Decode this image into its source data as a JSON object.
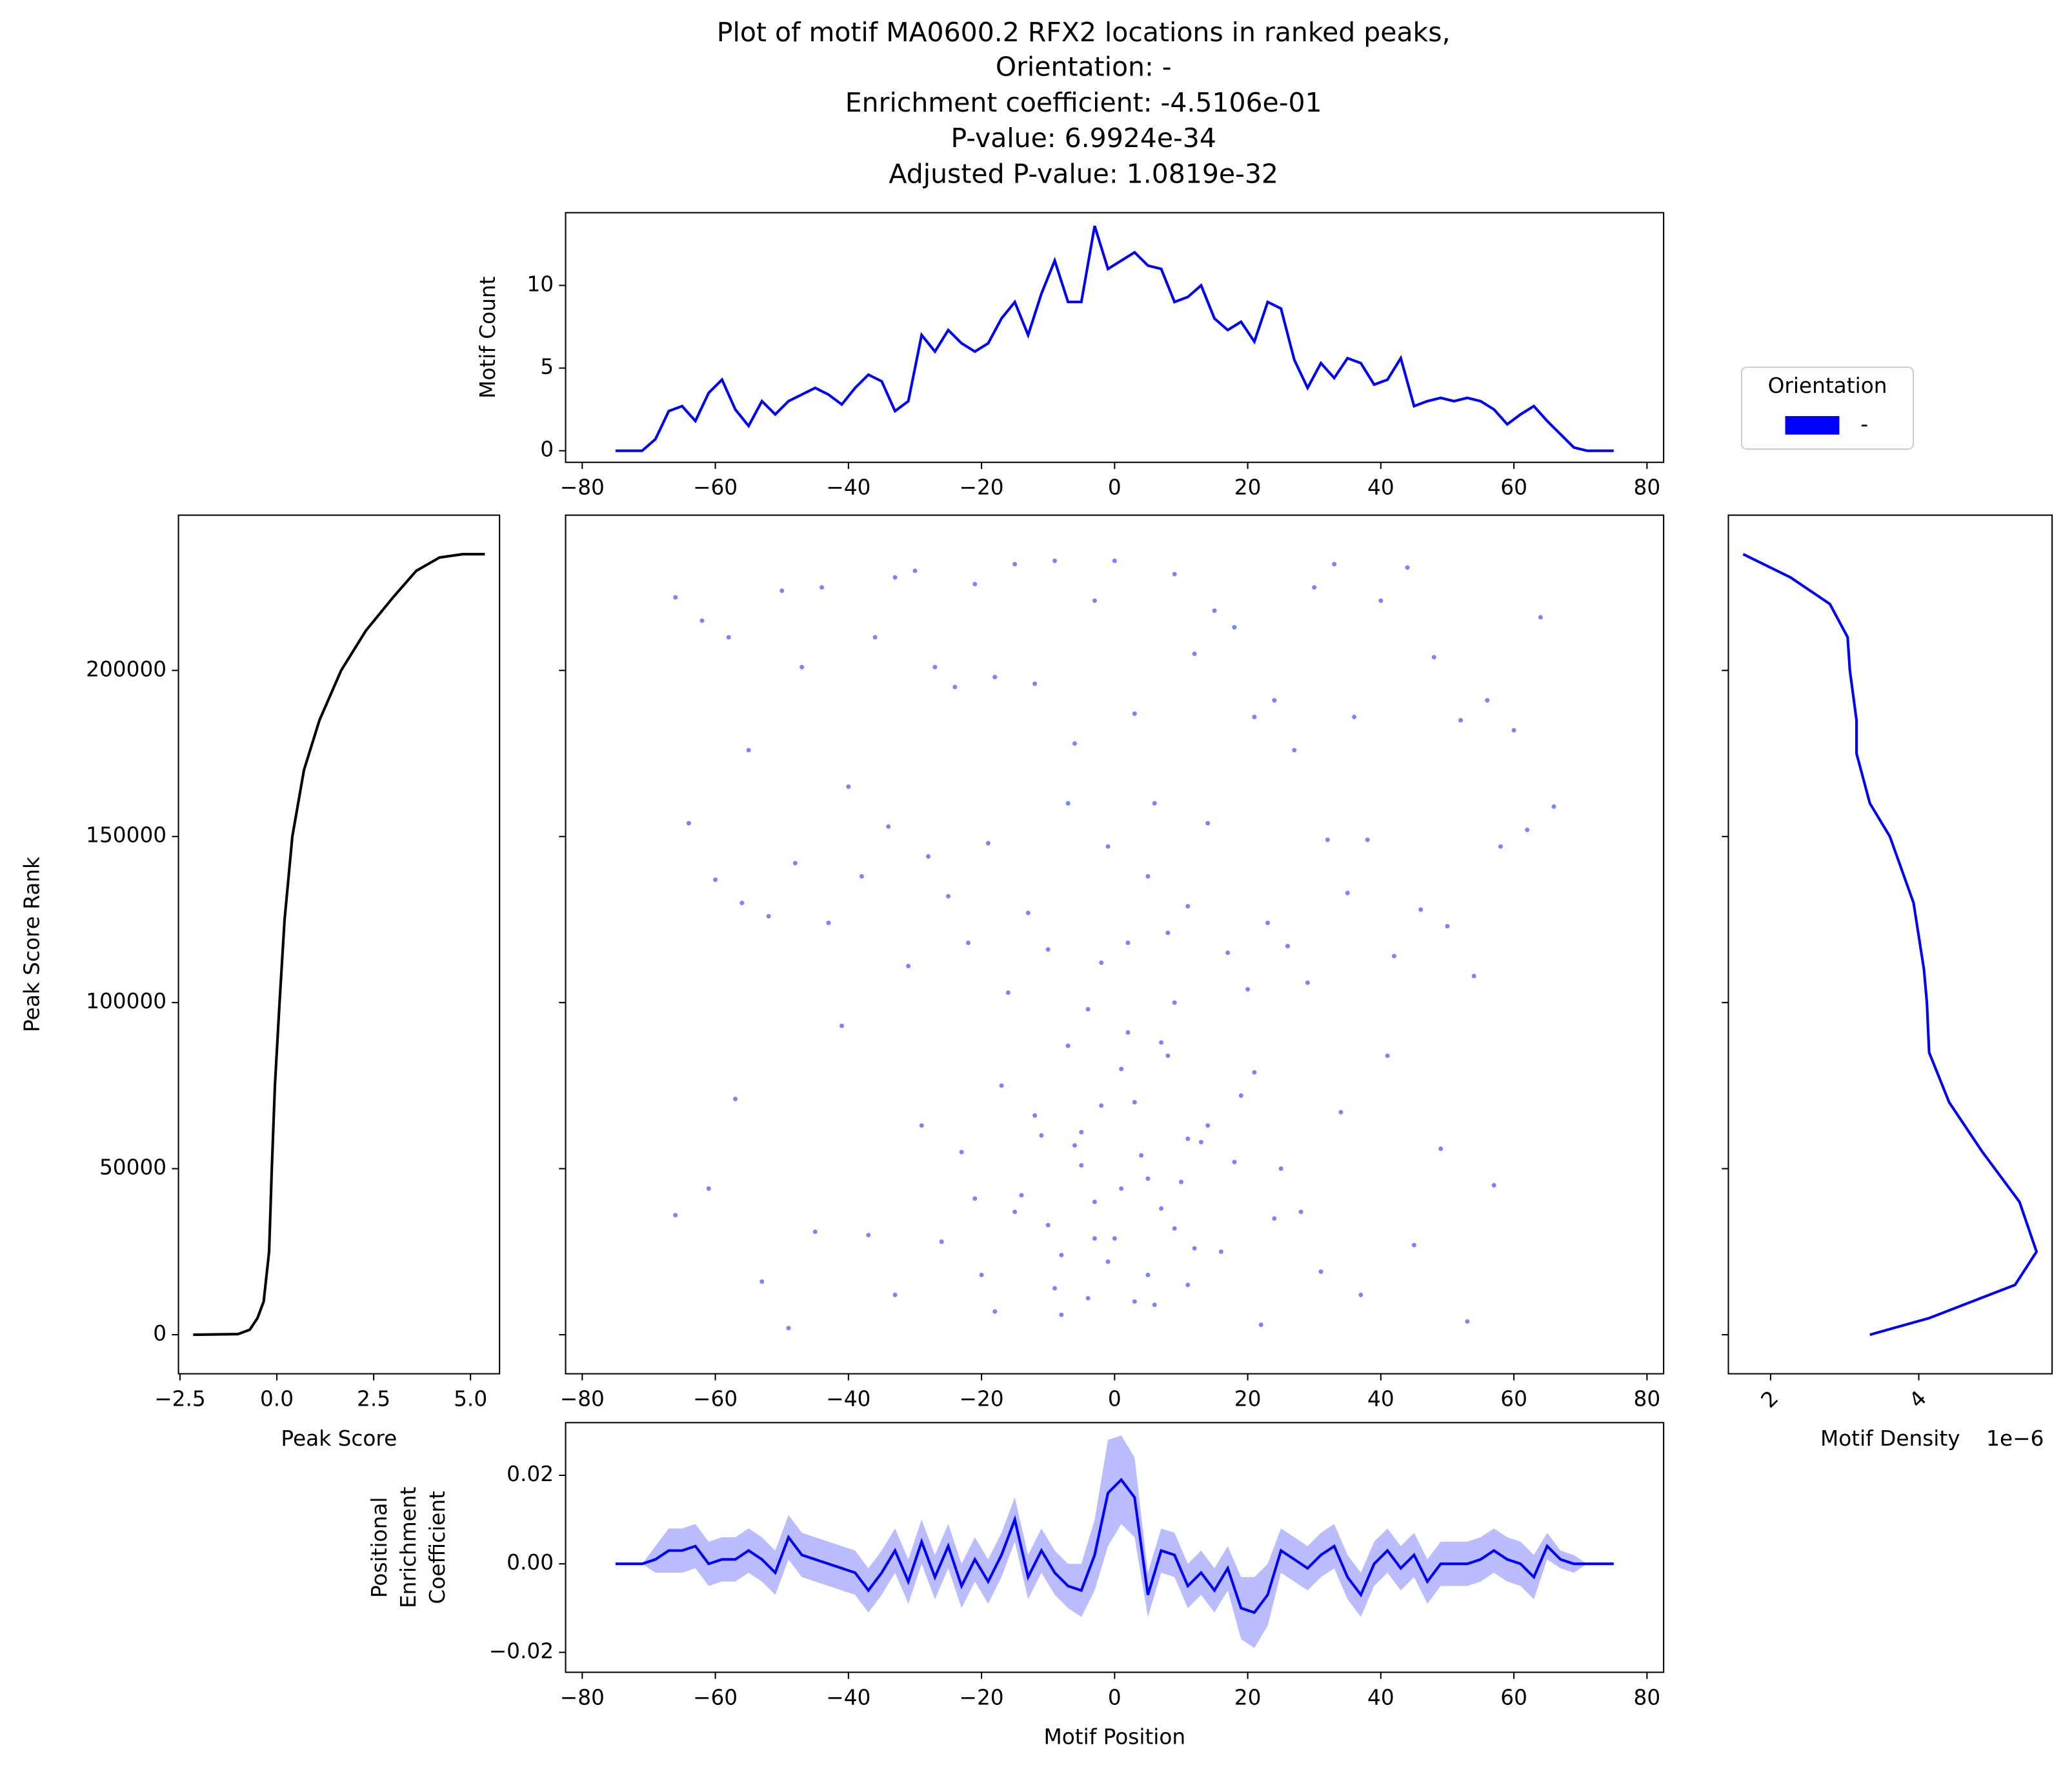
{
  "title": [
    "Plot of motif MA0600.2 RFX2 locations in ranked peaks,",
    "Orientation: -",
    "Enrichment coefficient: -4.5106e-01",
    "P-value: 6.9924e-34",
    "Adjusted P-value: 1.0819e-32"
  ],
  "chart_data": [
    {
      "type": "line",
      "ylabel": [
        "Motif Count"
      ],
      "xlim": [
        -82.5,
        82.5
      ],
      "ylim": [
        -0.7,
        14.4
      ],
      "xticks": [
        {
          "value": -80,
          "label": "−80"
        },
        {
          "value": -60,
          "label": "−60"
        },
        {
          "value": -40,
          "label": "−40"
        },
        {
          "value": -20,
          "label": "−20"
        },
        0,
        20,
        40,
        60,
        80
      ],
      "yticks": [
        0,
        5,
        10
      ],
      "x": [
        -75,
        -73,
        -71,
        -69,
        -67,
        -65,
        -63,
        -61,
        -59,
        -57,
        -55,
        -53,
        -51,
        -49,
        -47,
        -45,
        -43,
        -41,
        -39,
        -37,
        -35,
        -33,
        -31,
        -29,
        -27,
        -25,
        -23,
        -21,
        -19,
        -17,
        -15,
        -13,
        -11,
        -9,
        -7,
        -5,
        -3,
        -1,
        1,
        3,
        5,
        7,
        9,
        11,
        13,
        15,
        17,
        19,
        21,
        23,
        25,
        27,
        29,
        31,
        33,
        35,
        37,
        39,
        41,
        43,
        45,
        47,
        49,
        51,
        53,
        55,
        57,
        59,
        61,
        63,
        65,
        67,
        69,
        71,
        73,
        75
      ],
      "series": [
        {
          "color": "#0000ff",
          "values": [
            0,
            0,
            0,
            0.7,
            2.4,
            2.7,
            1.8,
            3.5,
            4.3,
            2.5,
            1.5,
            3.0,
            2.2,
            3.0,
            3.4,
            3.8,
            3.4,
            2.8,
            3.8,
            4.6,
            4.2,
            2.4,
            3.0,
            7.0,
            6.0,
            7.3,
            6.5,
            6.0,
            6.5,
            8.0,
            9.0,
            7.0,
            9.5,
            11.5,
            9.0,
            9.0,
            13.6,
            11.0,
            11.5,
            12.0,
            11.2,
            11.0,
            9.0,
            9.3,
            10.0,
            8.0,
            7.3,
            7.8,
            6.6,
            9.0,
            8.6,
            5.5,
            3.8,
            5.3,
            4.4,
            5.6,
            5.3,
            4.0,
            4.3,
            5.6,
            2.7,
            3.0,
            3.2,
            3.0,
            3.2,
            3.0,
            2.5,
            1.6,
            2.2,
            2.7,
            1.8,
            1.0,
            0.2,
            0,
            0,
            0
          ]
        }
      ]
    },
    {
      "type": "line",
      "xlabel": "Peak Score",
      "ylabel": [
        "Peak Score Rank"
      ],
      "xlim": [
        -2.54,
        5.75
      ],
      "ylim": [
        -11750,
        246750
      ],
      "xticks": [
        {
          "value": -2.5,
          "label": "−2.5"
        },
        {
          "value": 0,
          "label": "0.0"
        },
        2.5,
        {
          "value": 5,
          "label": "5.0"
        }
      ],
      "yticks": [
        0,
        50000,
        100000,
        150000,
        200000
      ],
      "x": [
        -2.16,
        -1.0,
        -0.7,
        -0.5,
        -0.34,
        -0.2,
        -0.13,
        -0.05,
        0.07,
        0.2,
        0.4,
        0.7,
        1.1,
        1.66,
        2.3,
        3.0,
        3.6,
        4.2,
        4.8,
        5.37
      ],
      "series": [
        {
          "color": "#000000",
          "values": [
            0,
            200,
            1500,
            5000,
            10000,
            25000,
            50000,
            75000,
            100000,
            125000,
            150000,
            170000,
            185000,
            200000,
            212000,
            222000,
            230000,
            234000,
            235000,
            235000
          ]
        }
      ]
    },
    {
      "type": "scatter",
      "legend_title": "Orientation",
      "xlim": [
        -82.5,
        82.5
      ],
      "ylim": [
        -11750,
        246750
      ],
      "xticks": [
        {
          "value": -80,
          "label": "−80"
        },
        {
          "value": -60,
          "label": "−60"
        },
        {
          "value": -40,
          "label": "−40"
        },
        {
          "value": -20,
          "label": "−20"
        },
        0,
        20,
        40,
        60,
        80
      ],
      "yticks": [
        0,
        50000,
        100000,
        150000,
        200000
      ],
      "show_ytick_labels": false,
      "series": [
        {
          "name": "-",
          "color": "#0000ff",
          "x": [
            -66,
            -62,
            -58,
            -55,
            -50,
            -47,
            -44,
            -40,
            -36,
            -33,
            -30,
            -27,
            -24,
            -21,
            -18,
            -15,
            -12,
            -9,
            -6,
            -3,
            0,
            3,
            6,
            9,
            12,
            15,
            18,
            21,
            24,
            27,
            30,
            33,
            36,
            40,
            44,
            48,
            52,
            56,
            60,
            64,
            -64,
            -60,
            -56,
            -52,
            -48,
            -43,
            -38,
            -34,
            -31,
            -28,
            -25,
            -22,
            -19,
            -16,
            -13,
            -10,
            -7,
            -4,
            -1,
            2,
            5,
            8,
            11,
            14,
            17,
            20,
            23,
            26,
            29,
            32,
            35,
            38,
            42,
            46,
            50,
            54,
            58,
            62,
            66,
            -2,
            -66,
            -61,
            -57,
            -53,
            -49,
            -45,
            -41,
            -37,
            -33,
            -29,
            -26,
            -23,
            -20,
            -17,
            -14,
            -11,
            -8,
            -5,
            -3,
            -1,
            1,
            3,
            5,
            7,
            9,
            11,
            13,
            16,
            19,
            22,
            25,
            28,
            31,
            34,
            37,
            41,
            45,
            49,
            53,
            57,
            -12,
            -10,
            -8,
            -6,
            -4,
            -2,
            0,
            2,
            4,
            6,
            8,
            10,
            12,
            14,
            -15,
            -18,
            -21,
            18,
            21,
            24,
            -9,
            -7,
            -5,
            -3,
            1,
            3,
            5,
            7,
            9,
            11
          ],
          "values": [
            222000,
            215000,
            210000,
            176000,
            224000,
            201000,
            225000,
            165000,
            210000,
            228000,
            230000,
            201000,
            195000,
            226000,
            198000,
            232000,
            196000,
            233000,
            178000,
            221000,
            233000,
            187000,
            160000,
            229000,
            205000,
            218000,
            213000,
            186000,
            191000,
            176000,
            225000,
            232000,
            186000,
            221000,
            231000,
            204000,
            185000,
            191000,
            182000,
            216000,
            154000,
            137000,
            130000,
            126000,
            142000,
            124000,
            138000,
            153000,
            111000,
            144000,
            132000,
            118000,
            148000,
            103000,
            127000,
            116000,
            160000,
            98000,
            147000,
            118000,
            138000,
            121000,
            129000,
            154000,
            115000,
            104000,
            124000,
            117000,
            106000,
            149000,
            133000,
            149000,
            114000,
            128000,
            123000,
            108000,
            147000,
            152000,
            159000,
            112000,
            36000,
            44000,
            71000,
            16000,
            2000,
            31000,
            93000,
            30000,
            12000,
            63000,
            28000,
            55000,
            18000,
            75000,
            42000,
            60000,
            6000,
            51000,
            40000,
            22000,
            80000,
            10000,
            47000,
            88000,
            32000,
            15000,
            58000,
            25000,
            72000,
            3000,
            50000,
            37000,
            19000,
            67000,
            12000,
            84000,
            27000,
            56000,
            4000,
            45000,
            66000,
            33000,
            24000,
            57000,
            11000,
            69000,
            29000,
            91000,
            54000,
            9000,
            84000,
            46000,
            26000,
            63000,
            37000,
            7000,
            41000,
            52000,
            79000,
            35000,
            14000,
            87000,
            61000,
            29000,
            44000,
            70000,
            18000,
            38000,
            100000,
            59000
          ]
        }
      ]
    },
    {
      "type": "line",
      "xlabel": "Motif Density",
      "x_offset_label": "1e−6",
      "xlim": [
        1.43,
        5.8
      ],
      "ylim": [
        -11750,
        246750
      ],
      "xticks": [
        2,
        4
      ],
      "xtick_rotation": 45,
      "yticks": [
        0,
        50000,
        100000,
        150000,
        200000
      ],
      "show_ytick_labels": false,
      "x": [
        1.63,
        2.27,
        2.8,
        3.04,
        3.07,
        3.16,
        3.16,
        3.34,
        3.61,
        3.93,
        4.07,
        4.11,
        4.14,
        4.41,
        4.86,
        5.36,
        5.59,
        5.3,
        4.14,
        3.34
      ],
      "series": [
        {
          "color": "#0000ff",
          "values": [
            235000,
            228000,
            220000,
            210000,
            200000,
            185000,
            175000,
            160000,
            150000,
            130000,
            110000,
            100000,
            85000,
            70000,
            55000,
            40000,
            25000,
            15000,
            5000,
            0
          ]
        }
      ]
    },
    {
      "type": "line",
      "xlabel": "Motif Position",
      "ylabel": [
        "Positional",
        "Enrichment",
        "Coefficient"
      ],
      "xlim": [
        -82.5,
        82.5
      ],
      "ylim": [
        -0.0245,
        0.0319
      ],
      "xticks": [
        {
          "value": -80,
          "label": "−80"
        },
        {
          "value": -60,
          "label": "−60"
        },
        {
          "value": -40,
          "label": "−40"
        },
        {
          "value": -20,
          "label": "−20"
        },
        0,
        20,
        40,
        60,
        80
      ],
      "yticks": [
        {
          "value": -0.02,
          "label": "−0.02"
        },
        {
          "value": 0,
          "label": "0.00"
        },
        0.02
      ],
      "x": [
        -75,
        -73,
        -71,
        -69,
        -67,
        -65,
        -63,
        -61,
        -59,
        -57,
        -55,
        -53,
        -51,
        -49,
        -47,
        -45,
        -43,
        -41,
        -39,
        -37,
        -35,
        -33,
        -31,
        -29,
        -27,
        -25,
        -23,
        -21,
        -19,
        -17,
        -15,
        -13,
        -11,
        -9,
        -7,
        -5,
        -3,
        -1,
        1,
        3,
        5,
        7,
        9,
        11,
        13,
        15,
        17,
        19,
        21,
        23,
        25,
        27,
        29,
        31,
        33,
        35,
        37,
        39,
        41,
        43,
        45,
        47,
        49,
        51,
        53,
        55,
        57,
        59,
        61,
        63,
        65,
        67,
        69,
        71,
        73,
        75
      ],
      "series": [
        {
          "color": "#0000ff",
          "band_color": "#bbbbff",
          "values": [
            0,
            0,
            0,
            0.001,
            0.003,
            0.003,
            0.004,
            0.0,
            0.001,
            0.001,
            0.003,
            0.001,
            -0.002,
            0.006,
            0.002,
            0.001,
            0.0,
            -0.001,
            -0.002,
            -0.006,
            -0.002,
            0.003,
            -0.004,
            0.005,
            -0.003,
            0.004,
            -0.005,
            0.001,
            -0.004,
            0.002,
            0.01,
            -0.003,
            0.003,
            -0.002,
            -0.005,
            -0.006,
            0.002,
            0.016,
            0.019,
            0.015,
            -0.007,
            0.003,
            0.002,
            -0.005,
            -0.002,
            -0.006,
            -0.001,
            -0.01,
            -0.011,
            -0.007,
            0.003,
            0.001,
            -0.001,
            0.002,
            0.004,
            -0.003,
            -0.007,
            0.0,
            0.003,
            -0.001,
            0.002,
            -0.004,
            0.0,
            0.0,
            0.0,
            0.001,
            0.003,
            0.001,
            0.0,
            -0.003,
            0.004,
            0.001,
            0.0,
            0,
            0,
            0
          ],
          "errors": [
            0,
            0,
            0,
            0.003,
            0.005,
            0.005,
            0.005,
            0.005,
            0.005,
            0.005,
            0.005,
            0.005,
            0.005,
            0.005,
            0.005,
            0.005,
            0.005,
            0.005,
            0.005,
            0.005,
            0.005,
            0.005,
            0.005,
            0.005,
            0.005,
            0.005,
            0.005,
            0.005,
            0.005,
            0.005,
            0.005,
            0.005,
            0.005,
            0.005,
            0.005,
            0.006,
            0.008,
            0.012,
            0.01,
            0.009,
            0.005,
            0.005,
            0.005,
            0.005,
            0.005,
            0.005,
            0.005,
            0.007,
            0.008,
            0.007,
            0.005,
            0.005,
            0.005,
            0.005,
            0.005,
            0.005,
            0.005,
            0.005,
            0.005,
            0.005,
            0.005,
            0.005,
            0.005,
            0.005,
            0.005,
            0.005,
            0.005,
            0.005,
            0.005,
            0.005,
            0.003,
            0.002,
            0.002,
            0,
            0,
            0
          ]
        }
      ]
    }
  ]
}
